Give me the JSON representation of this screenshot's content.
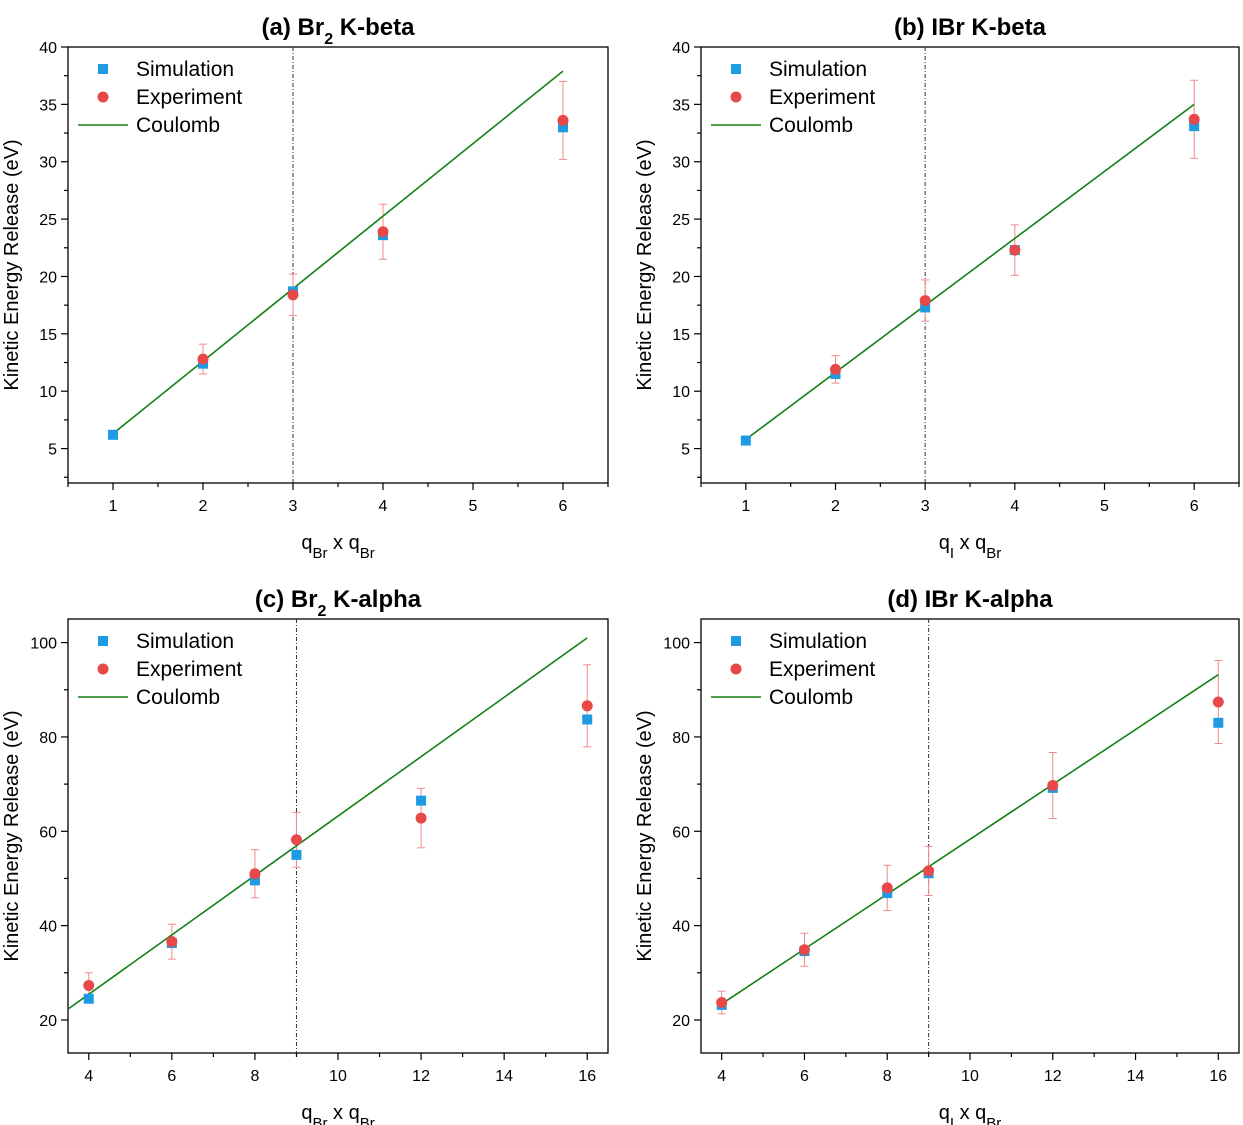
{
  "chart_data": [
    {
      "type": "scatter",
      "panel": "a",
      "title": {
        "prefix": "(a) Br",
        "sub": "2",
        "suffix": " K-beta"
      },
      "xlabel": {
        "q1": "q",
        "q1sub": "Br",
        "times": " x ",
        "q2": "q",
        "q2sub": "Br"
      },
      "ylabel": "Kinetic Energy Release (eV)",
      "xlim": [
        0.5,
        6.5
      ],
      "ylim": [
        2,
        40
      ],
      "xticks": [
        1,
        2,
        3,
        4,
        5,
        6
      ],
      "yticks": [
        5,
        10,
        15,
        20,
        25,
        30,
        35,
        40
      ],
      "vline": 3,
      "legend": [
        "Simulation",
        "Experiment",
        "Coulomb"
      ],
      "legend_position": "top-left",
      "series": [
        {
          "name": "Simulation",
          "marker": "square",
          "color": "#1e9be3",
          "x": [
            1,
            2,
            3,
            4,
            6
          ],
          "y": [
            6.2,
            12.4,
            18.7,
            23.6,
            33.0
          ]
        },
        {
          "name": "Experiment",
          "marker": "circle",
          "color": "#e84848",
          "x": [
            2,
            3,
            4,
            6
          ],
          "y": [
            12.8,
            18.4,
            23.9,
            33.6
          ],
          "err": [
            1.3,
            1.8,
            2.4,
            3.4
          ]
        },
        {
          "name": "Coulomb",
          "marker": "line",
          "color": "#138013",
          "x": [
            1,
            6
          ],
          "y": [
            6.3,
            37.9
          ]
        }
      ]
    },
    {
      "type": "scatter",
      "panel": "b",
      "title": {
        "prefix": "(b) IBr K-beta",
        "sub": "",
        "suffix": ""
      },
      "xlabel": {
        "q1": "q",
        "q1sub": "I",
        "times": " x ",
        "q2": "q",
        "q2sub": "Br"
      },
      "ylabel": "Kinetic Energy Release (eV)",
      "xlim": [
        0.5,
        6.5
      ],
      "ylim": [
        2,
        40
      ],
      "xticks": [
        1,
        2,
        3,
        4,
        5,
        6
      ],
      "yticks": [
        5,
        10,
        15,
        20,
        25,
        30,
        35,
        40
      ],
      "vline": 3,
      "legend": [
        "Simulation",
        "Experiment",
        "Coulomb"
      ],
      "legend_position": "top-left",
      "series": [
        {
          "name": "Simulation",
          "marker": "square",
          "color": "#1e9be3",
          "x": [
            1,
            2,
            3,
            4,
            6
          ],
          "y": [
            5.7,
            11.5,
            17.3,
            22.3,
            33.1
          ]
        },
        {
          "name": "Experiment",
          "marker": "circle",
          "color": "#e84848",
          "x": [
            2,
            3,
            4,
            6
          ],
          "y": [
            11.9,
            17.9,
            22.3,
            33.7
          ],
          "err": [
            1.2,
            1.8,
            2.2,
            3.4
          ]
        },
        {
          "name": "Coulomb",
          "marker": "line",
          "color": "#138013",
          "x": [
            1,
            6
          ],
          "y": [
            5.8,
            35.0
          ]
        }
      ]
    },
    {
      "type": "scatter",
      "panel": "c",
      "title": {
        "prefix": "(c) Br",
        "sub": "2",
        "suffix": " K-alpha"
      },
      "xlabel": {
        "q1": "q",
        "q1sub": "Br",
        "times": " x ",
        "q2": "q",
        "q2sub": "Br"
      },
      "ylabel": "Kinetic Energy Release (eV)",
      "xlim": [
        3.5,
        16.5
      ],
      "ylim": [
        13,
        105
      ],
      "xticks": [
        4,
        6,
        8,
        10,
        12,
        14,
        16
      ],
      "yticks": [
        20,
        40,
        60,
        80,
        100
      ],
      "vline": 9,
      "legend": [
        "Simulation",
        "Experiment",
        "Coulomb"
      ],
      "legend_position": "top-left",
      "series": [
        {
          "name": "Simulation",
          "marker": "square",
          "color": "#1e9be3",
          "x": [
            4,
            6,
            8,
            9,
            12,
            16
          ],
          "y": [
            24.5,
            36.3,
            49.6,
            55.0,
            66.5,
            83.7
          ]
        },
        {
          "name": "Experiment",
          "marker": "circle",
          "color": "#e84848",
          "x": [
            4,
            6,
            8,
            9,
            12,
            16
          ],
          "y": [
            27.3,
            36.6,
            51.0,
            58.2,
            62.8,
            86.6
          ],
          "err": [
            2.7,
            3.7,
            5.1,
            5.8,
            6.3,
            8.7
          ]
        },
        {
          "name": "Coulomb",
          "marker": "line",
          "color": "#138013",
          "x": [
            3.5,
            16
          ],
          "y": [
            22.3,
            101.0
          ]
        }
      ]
    },
    {
      "type": "scatter",
      "panel": "d",
      "title": {
        "prefix": "(d) IBr K-alpha",
        "sub": "",
        "suffix": ""
      },
      "xlabel": {
        "q1": "q",
        "q1sub": "I",
        "times": " x ",
        "q2": "q",
        "q2sub": "Br"
      },
      "ylabel": "Kinetic Energy Release (eV)",
      "xlim": [
        3.5,
        16.5
      ],
      "ylim": [
        13,
        105
      ],
      "xticks": [
        4,
        6,
        8,
        10,
        12,
        14,
        16
      ],
      "yticks": [
        20,
        40,
        60,
        80,
        100
      ],
      "vline": 9,
      "legend": [
        "Simulation",
        "Experiment",
        "Coulomb"
      ],
      "legend_position": "top-left",
      "series": [
        {
          "name": "Simulation",
          "marker": "square",
          "color": "#1e9be3",
          "x": [
            4,
            6,
            8,
            9,
            12,
            16
          ],
          "y": [
            23.2,
            34.6,
            46.9,
            51.1,
            69.2,
            83.0
          ]
        },
        {
          "name": "Experiment",
          "marker": "circle",
          "color": "#e84848",
          "x": [
            4,
            6,
            8,
            9,
            12,
            16
          ],
          "y": [
            23.7,
            34.9,
            48.0,
            51.6,
            69.7,
            87.4
          ],
          "err": [
            2.4,
            3.5,
            4.8,
            5.2,
            7.0,
            8.8
          ]
        },
        {
          "name": "Coulomb",
          "marker": "line",
          "color": "#138013",
          "x": [
            4,
            16
          ],
          "y": [
            23.4,
            93.2
          ]
        }
      ]
    }
  ]
}
